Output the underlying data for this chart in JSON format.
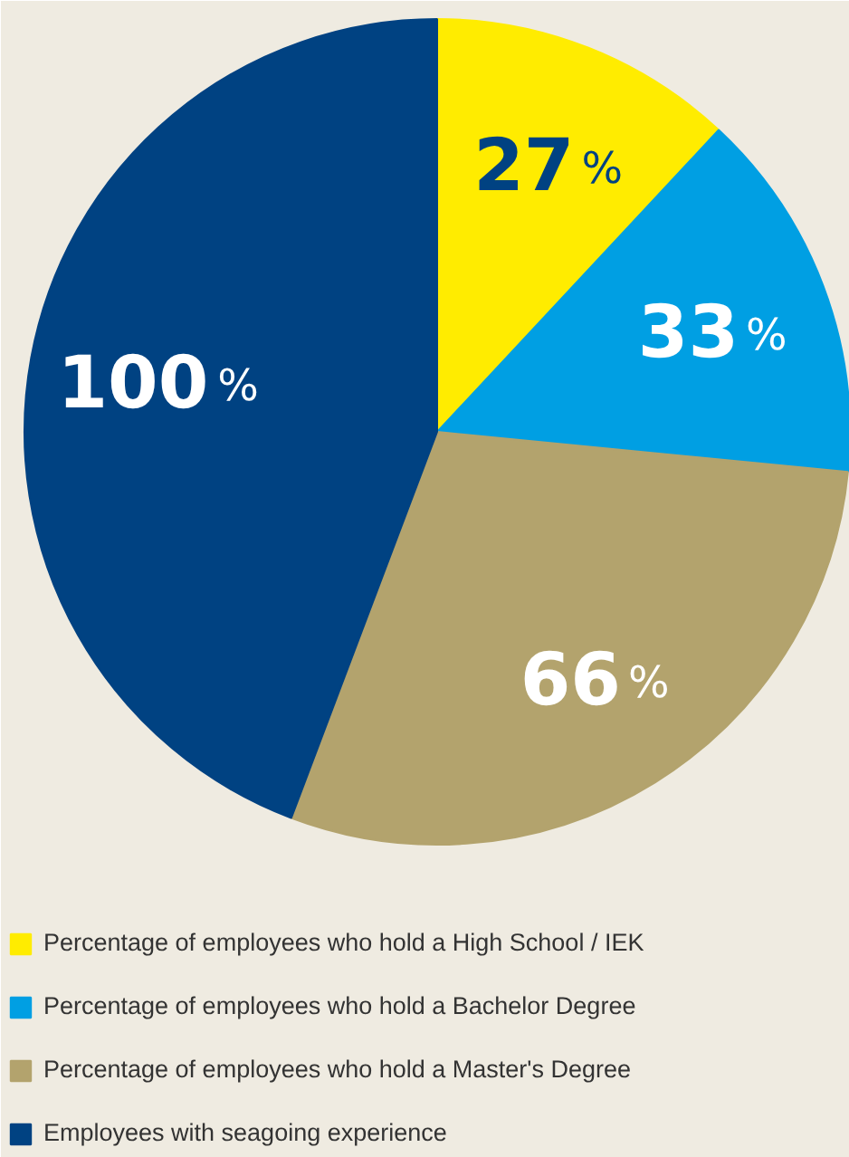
{
  "chart_data": {
    "type": "pie",
    "categories": [
      "Percentage of employees who hold a High School / IEK",
      "Percentage of employees who hold a Bachelor Degree",
      "Percentage of employees who hold a Master's Degree",
      "Employees with seagoing experience"
    ],
    "values": [
      27,
      33,
      66,
      100
    ],
    "colors": [
      "#ffec00",
      "#009fe3",
      "#b3a36d",
      "#004282"
    ],
    "value_labels": [
      "27%",
      "33%",
      "66%",
      "100%"
    ],
    "legend": "bottom"
  }
}
